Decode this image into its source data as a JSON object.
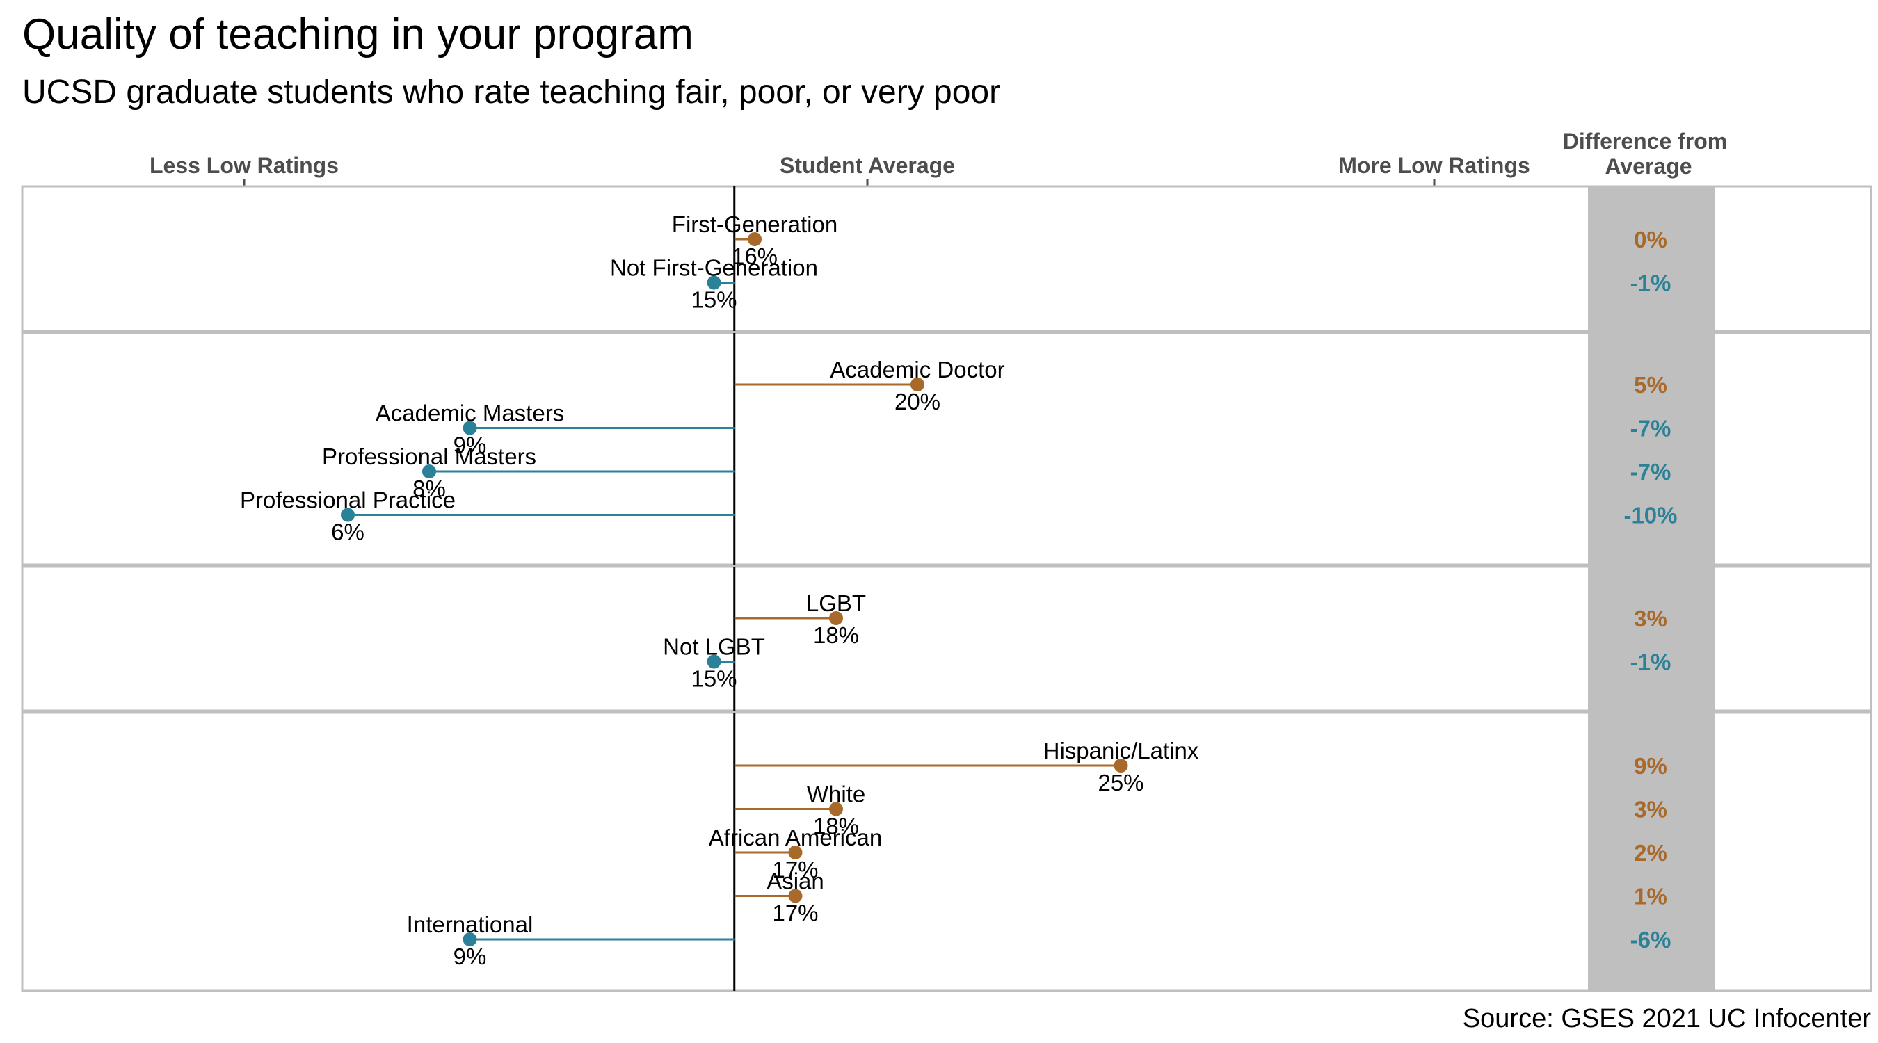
{
  "chart_data": {
    "type": "dot-lollipop",
    "title": "Quality of teaching in your program",
    "subtitle": "UCSD graduate students who rate teaching fair, poor, or very poor",
    "source": "Source: GSES 2021 UC Infocenter",
    "axis_labels": {
      "left": "Less Low Ratings",
      "center": "Student Average",
      "right": "More Low Ratings",
      "diff_header_line1": "Difference from",
      "diff_header_line2": "Average"
    },
    "average": 15.5,
    "xlim": [
      -2,
      32
    ],
    "colors": {
      "above": "#a8692a",
      "below": "#2b8197",
      "center_line": "#000000",
      "diff_panel": "#bfbfbf",
      "frame": "#bfbfbf"
    },
    "groups": [
      {
        "rows": [
          {
            "label": "First-Generation",
            "value": 16,
            "value_label": "16%",
            "diff_label": "0%",
            "direction": "above"
          },
          {
            "label": "Not First-Generation",
            "value": 15,
            "value_label": "15%",
            "diff_label": "-1%",
            "direction": "below"
          }
        ]
      },
      {
        "rows": [
          {
            "label": "Academic Doctor",
            "value": 20,
            "value_label": "20%",
            "diff_label": "5%",
            "direction": "above"
          },
          {
            "label": "Academic Masters",
            "value": 9,
            "value_label": "9%",
            "diff_label": "-7%",
            "direction": "below"
          },
          {
            "label": "Professional Masters",
            "value": 8,
            "value_label": "8%",
            "diff_label": "-7%",
            "direction": "below"
          },
          {
            "label": "Professional Practice",
            "value": 6,
            "value_label": "6%",
            "diff_label": "-10%",
            "direction": "below"
          }
        ]
      },
      {
        "rows": [
          {
            "label": "LGBT",
            "value": 18,
            "value_label": "18%",
            "diff_label": "3%",
            "direction": "above"
          },
          {
            "label": "Not LGBT",
            "value": 15,
            "value_label": "15%",
            "diff_label": "-1%",
            "direction": "below"
          }
        ]
      },
      {
        "rows": [
          {
            "label": "Hispanic/Latinx",
            "value": 25,
            "value_label": "25%",
            "diff_label": "9%",
            "direction": "above"
          },
          {
            "label": "White",
            "value": 18,
            "value_label": "18%",
            "diff_label": "3%",
            "direction": "above"
          },
          {
            "label": "African American",
            "value": 17,
            "value_label": "17%",
            "diff_label": "2%",
            "direction": "above"
          },
          {
            "label": "Asian",
            "value": 17,
            "value_label": "17%",
            "diff_label": "1%",
            "direction": "above"
          },
          {
            "label": "International",
            "value": 9,
            "value_label": "9%",
            "diff_label": "-6%",
            "direction": "below"
          }
        ]
      }
    ]
  }
}
